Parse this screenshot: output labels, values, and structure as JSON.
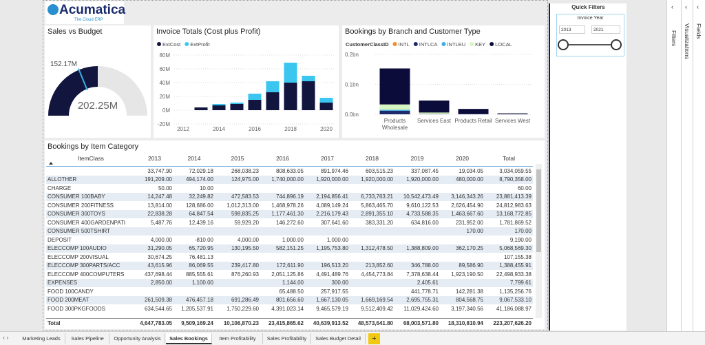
{
  "logo": {
    "name": "Acumatica",
    "tagline": "The Cloud ERP"
  },
  "chart_data": [
    {
      "type": "gauge",
      "title": "Sales vs Budget",
      "value": 202.25,
      "value_label": "202.25M",
      "target": 152.17,
      "target_label": "152.17M",
      "ylim": [
        0,
        404.5
      ],
      "color": "#12163f",
      "track_color": "#e6e6e6",
      "target_color": "#3ab0e8"
    },
    {
      "type": "bar",
      "stacked": true,
      "title": "Invoice Totals (Cost plus Profit)",
      "x": [
        2013,
        2014,
        2015,
        2016,
        2017,
        2018,
        2019,
        2020
      ],
      "series": [
        {
          "name": "ExtCost",
          "color": "#12163f",
          "values": [
            4,
            7,
            9,
            15,
            26,
            40,
            42,
            11
          ]
        },
        {
          "name": "ExtProfit",
          "color": "#3bc6f0",
          "values": [
            0,
            2,
            2,
            9,
            16,
            29,
            8,
            7
          ]
        }
      ],
      "xlim": [
        2011.5,
        2020.5
      ],
      "xticks": [
        2012,
        2014,
        2016,
        2018,
        2020
      ],
      "ylim": [
        -20,
        80
      ],
      "yticks": [
        {
          "value": -20,
          "label": "-20M"
        },
        {
          "value": 0,
          "label": "0M"
        },
        {
          "value": 20,
          "label": "20M"
        },
        {
          "value": 40,
          "label": "40M"
        },
        {
          "value": 60,
          "label": "60M"
        },
        {
          "value": 80,
          "label": "80M"
        }
      ],
      "grid": true
    },
    {
      "type": "bar",
      "stacked": true,
      "title": "Bookings by Branch and Customer Type",
      "legend_title": "CustomerClassID",
      "categories": [
        "Products Wholesale",
        "Services East",
        "Products Retail",
        "Services West"
      ],
      "series": [
        {
          "name": "INTL",
          "color": "#f28e2b",
          "values": [
            0,
            0,
            0,
            0
          ]
        },
        {
          "name": "INTLCA",
          "color": "#1f2a6b",
          "values": [
            0.012,
            0.001,
            0.002,
            0
          ]
        },
        {
          "name": "INTLEU",
          "color": "#3ab0e8",
          "values": [
            0.003,
            0,
            0,
            0
          ]
        },
        {
          "name": "KEY",
          "color": "#d7f5c0",
          "values": [
            0.018,
            0.005,
            0,
            0
          ]
        },
        {
          "name": "LOCAL",
          "color": "#0b0c3a",
          "values": [
            0.12,
            0.04,
            0.016,
            0.003
          ]
        }
      ],
      "ylim": [
        0,
        0.2
      ],
      "yticks": [
        {
          "value": 0,
          "label": "0.0bn"
        },
        {
          "value": 0.1,
          "label": "0.1bn"
        },
        {
          "value": 0.2,
          "label": "0.2bn"
        }
      ],
      "grid": true
    }
  ],
  "table": {
    "title": "Bookings by Item Category",
    "columns": [
      "ItemClass",
      "2013",
      "2014",
      "2015",
      "2016",
      "2017",
      "2018",
      "2019",
      "2020",
      "Total"
    ],
    "rows": [
      [
        null,
        "33,747.90",
        "72,029.18",
        "268,038.23",
        "808,633.05",
        "891,974.46",
        "603,515.23",
        "337,087.45",
        "19,034.05",
        "3,034,059.55"
      ],
      [
        "ALLOTHER",
        "191,209.00",
        "494,174.00",
        "124,975.00",
        "1,740,000.00",
        "1,920,000.00",
        "1,920,000.00",
        "1,920,000.00",
        "480,000.00",
        "8,790,358.00"
      ],
      [
        "CHARGE",
        "50.00",
        "10.00",
        null,
        null,
        null,
        null,
        null,
        null,
        "60.00"
      ],
      [
        "CONSUMER 100BABY",
        "14,247.48",
        "32,249.82",
        "472,583.53",
        "744,896.19",
        "2,194,856.41",
        "6,733,763.21",
        "10,542,473.49",
        "3,146,343.26",
        "23,881,413.39"
      ],
      [
        "CONSUMER 200FITNESS",
        "13,814.00",
        "128,686.00",
        "1,012,313.00",
        "1,468,978.26",
        "4,089,149.24",
        "5,863,465.70",
        "9,610,122.53",
        "2,626,454.90",
        "24,812,983.63"
      ],
      [
        "CONSUMER 300TOYS",
        "22,838.28",
        "64,847.54",
        "598,835.25",
        "1,177,461.30",
        "2,216,179.43",
        "2,891,355.10",
        "4,733,588.35",
        "1,463,667.60",
        "13,168,772.85"
      ],
      [
        "CONSUMER 400GARDENPATI",
        "5,487.76",
        "12,439.16",
        "59,929.20",
        "146,272.60",
        "307,641.60",
        "383,331.20",
        "634,816.00",
        "231,952.00",
        "1,781,869.52"
      ],
      [
        "CONSUMER 500TSHIRT",
        null,
        null,
        null,
        null,
        null,
        null,
        null,
        "170.00",
        "170.00"
      ],
      [
        "DEPOSIT",
        "4,000.00",
        "-810.00",
        "4,000.00",
        "1,000.00",
        "1,000.00",
        null,
        null,
        null,
        "9,190.00"
      ],
      [
        "ELECCOMP 100AUDIO",
        "31,290.05",
        "65,720.95",
        "130,195.50",
        "582,151.25",
        "1,195,753.80",
        "1,312,478.50",
        "1,388,809.00",
        "362,170.25",
        "5,068,569.30"
      ],
      [
        "ELECCOMP 200VISUAL",
        "30,674.25",
        "76,481.13",
        null,
        null,
        null,
        null,
        null,
        null,
        "107,155.38"
      ],
      [
        "ELECCOMP 300PARTS/ACC",
        "43,615.96",
        "86,069.55",
        "239,417.80",
        "172,611.90",
        "196,513.20",
        "213,852.60",
        "346,788.00",
        "89,586.90",
        "1,388,455.91"
      ],
      [
        "ELECCOMP 400COMPUTERS",
        "437,698.44",
        "885,555.61",
        "876,260.93",
        "2,051,125.86",
        "4,491,489.76",
        "4,454,773.84",
        "7,378,638.44",
        "1,923,190.50",
        "22,498,933.38"
      ],
      [
        "EXPENSES",
        "2,850.00",
        "1,100.00",
        null,
        "1,144.00",
        "300.00",
        null,
        "2,405.61",
        null,
        "7,799.61"
      ],
      [
        "FOOD 100CANDY",
        null,
        null,
        null,
        "65,488.50",
        "257,917.55",
        null,
        "441,778.71",
        "142,281.38",
        "1,135,256.76"
      ],
      [
        "FOOD 200MEAT",
        "261,509.38",
        "476,457.18",
        "691,286.49",
        "801,656.60",
        "1,667,130.05",
        "1,669,169.54",
        "2,695,755.31",
        "804,568.75",
        "9,067,533.10"
      ],
      [
        "FOOD 300PKGFOODS",
        "634,544.65",
        "1,205,537.91",
        "1,750,229.60",
        "4,391,023.14",
        "9,465,579.19",
        "9,512,409.42",
        "11,029,424.60",
        "3,197,340.56",
        "41,186,088.97"
      ]
    ],
    "total": [
      "Total",
      "4,647,783.05",
      "9,509,169.24",
      "10,106,870.23",
      "23,415,865.62",
      "40,639,913.52",
      "48,573,641.80",
      "68,003,571.80",
      "18,310,810.94",
      "223,207,626.20"
    ]
  },
  "quick_filters": {
    "title": "Quick Filters",
    "slicer_title": "Invoice Year",
    "from": "2013",
    "to": "2021"
  },
  "panes": [
    "Filters",
    "Visualizations",
    "Fields"
  ],
  "tabs": {
    "items": [
      "Marketing Leads",
      "Sales Pipeline",
      "Opportunity Analysis",
      "Sales Bookings",
      "Item Profitability",
      "Sales Profitability",
      "Sales Budget Detail"
    ],
    "active": 3
  }
}
